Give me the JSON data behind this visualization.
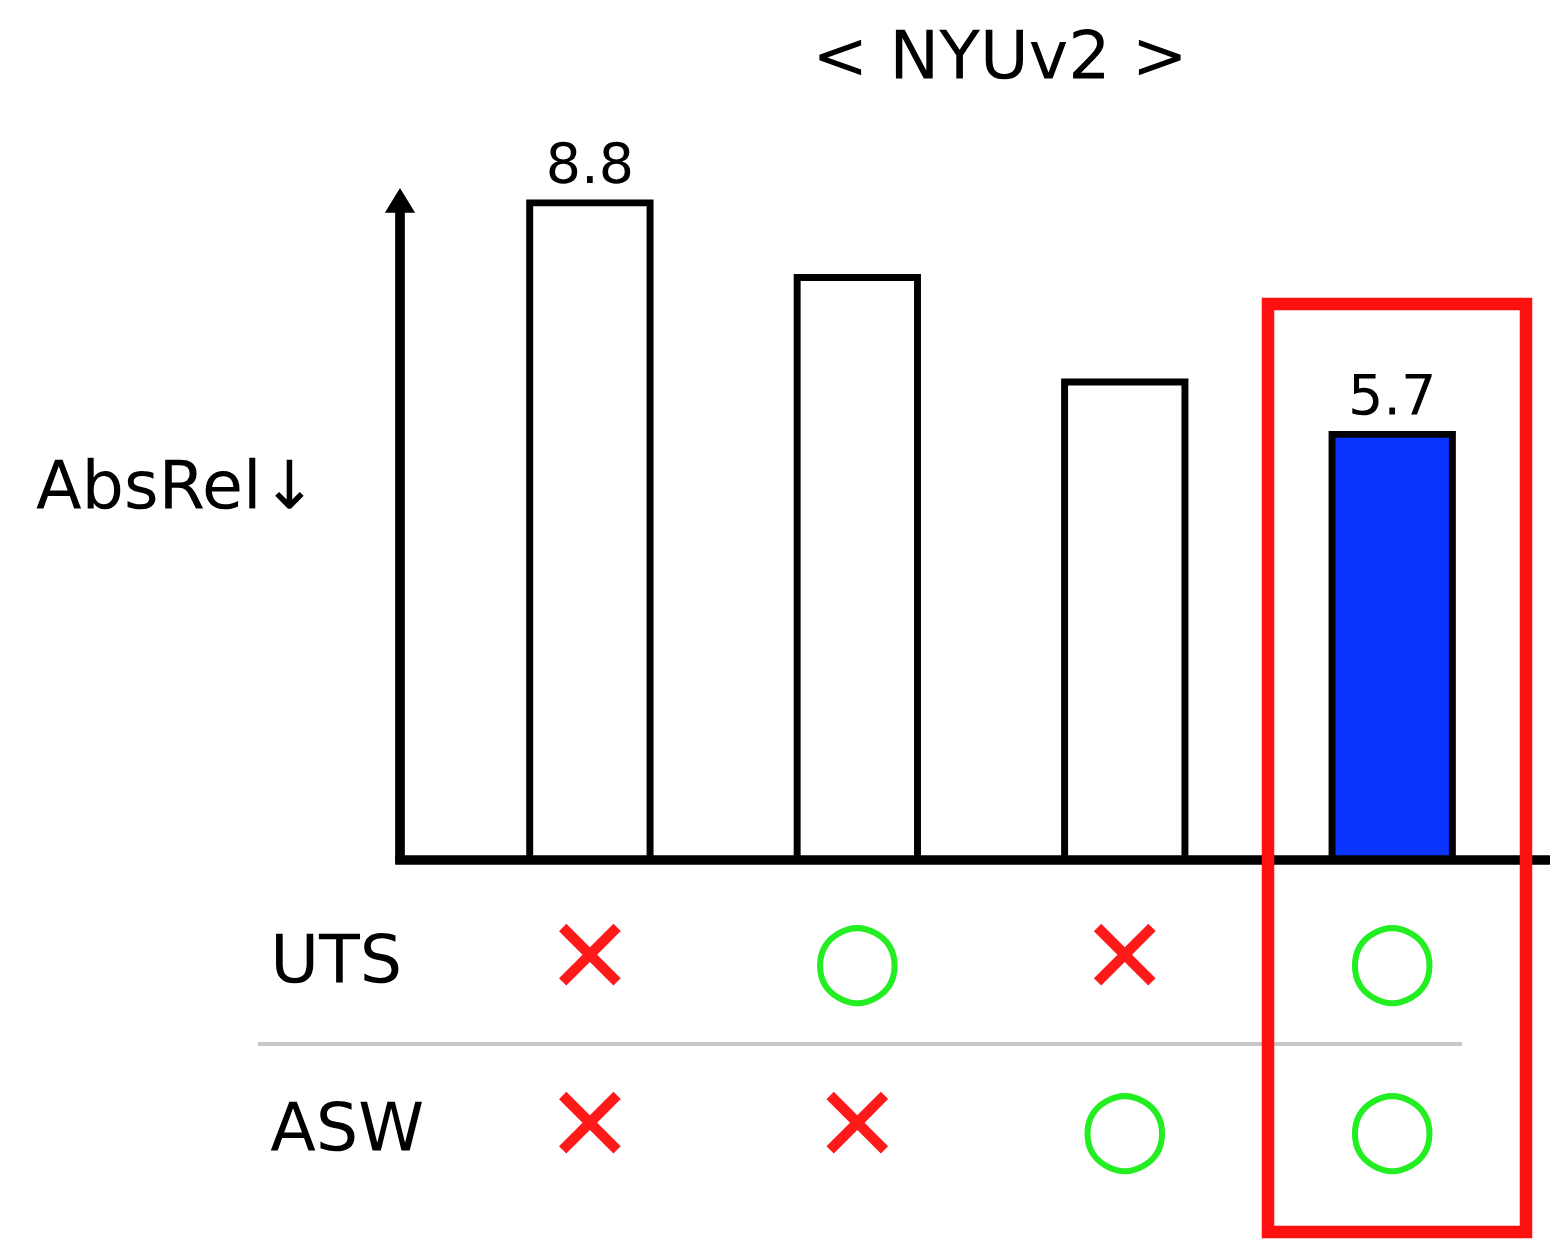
{
  "chart_data": [
    {
      "type": "bar",
      "title": "< NYUv2 >",
      "ylabel": "AbsRel↓",
      "categories": [
        null,
        null,
        null,
        null
      ],
      "values": [
        8.8,
        7.8,
        6.4,
        5.7
      ],
      "colors": [
        "#ffffff",
        "#ffffff",
        "#ffffff",
        "#0a35ff"
      ],
      "value_labels": [
        "8.8",
        null,
        null,
        "5.7"
      ]
    },
    {
      "type": "other",
      "annotations": [
        "UTS",
        "✕",
        "○",
        "✕",
        "○",
        "ASW",
        "✕",
        "✕",
        "○",
        "○"
      ],
      "colors": [
        "#000000",
        "#ff1a1a",
        "#22ee22",
        "#ff1a1a",
        "#22ee22",
        "#000000",
        "#ff1a1a",
        "#ff1a1a",
        "#22ee22",
        "#22ee22"
      ]
    }
  ]
}
